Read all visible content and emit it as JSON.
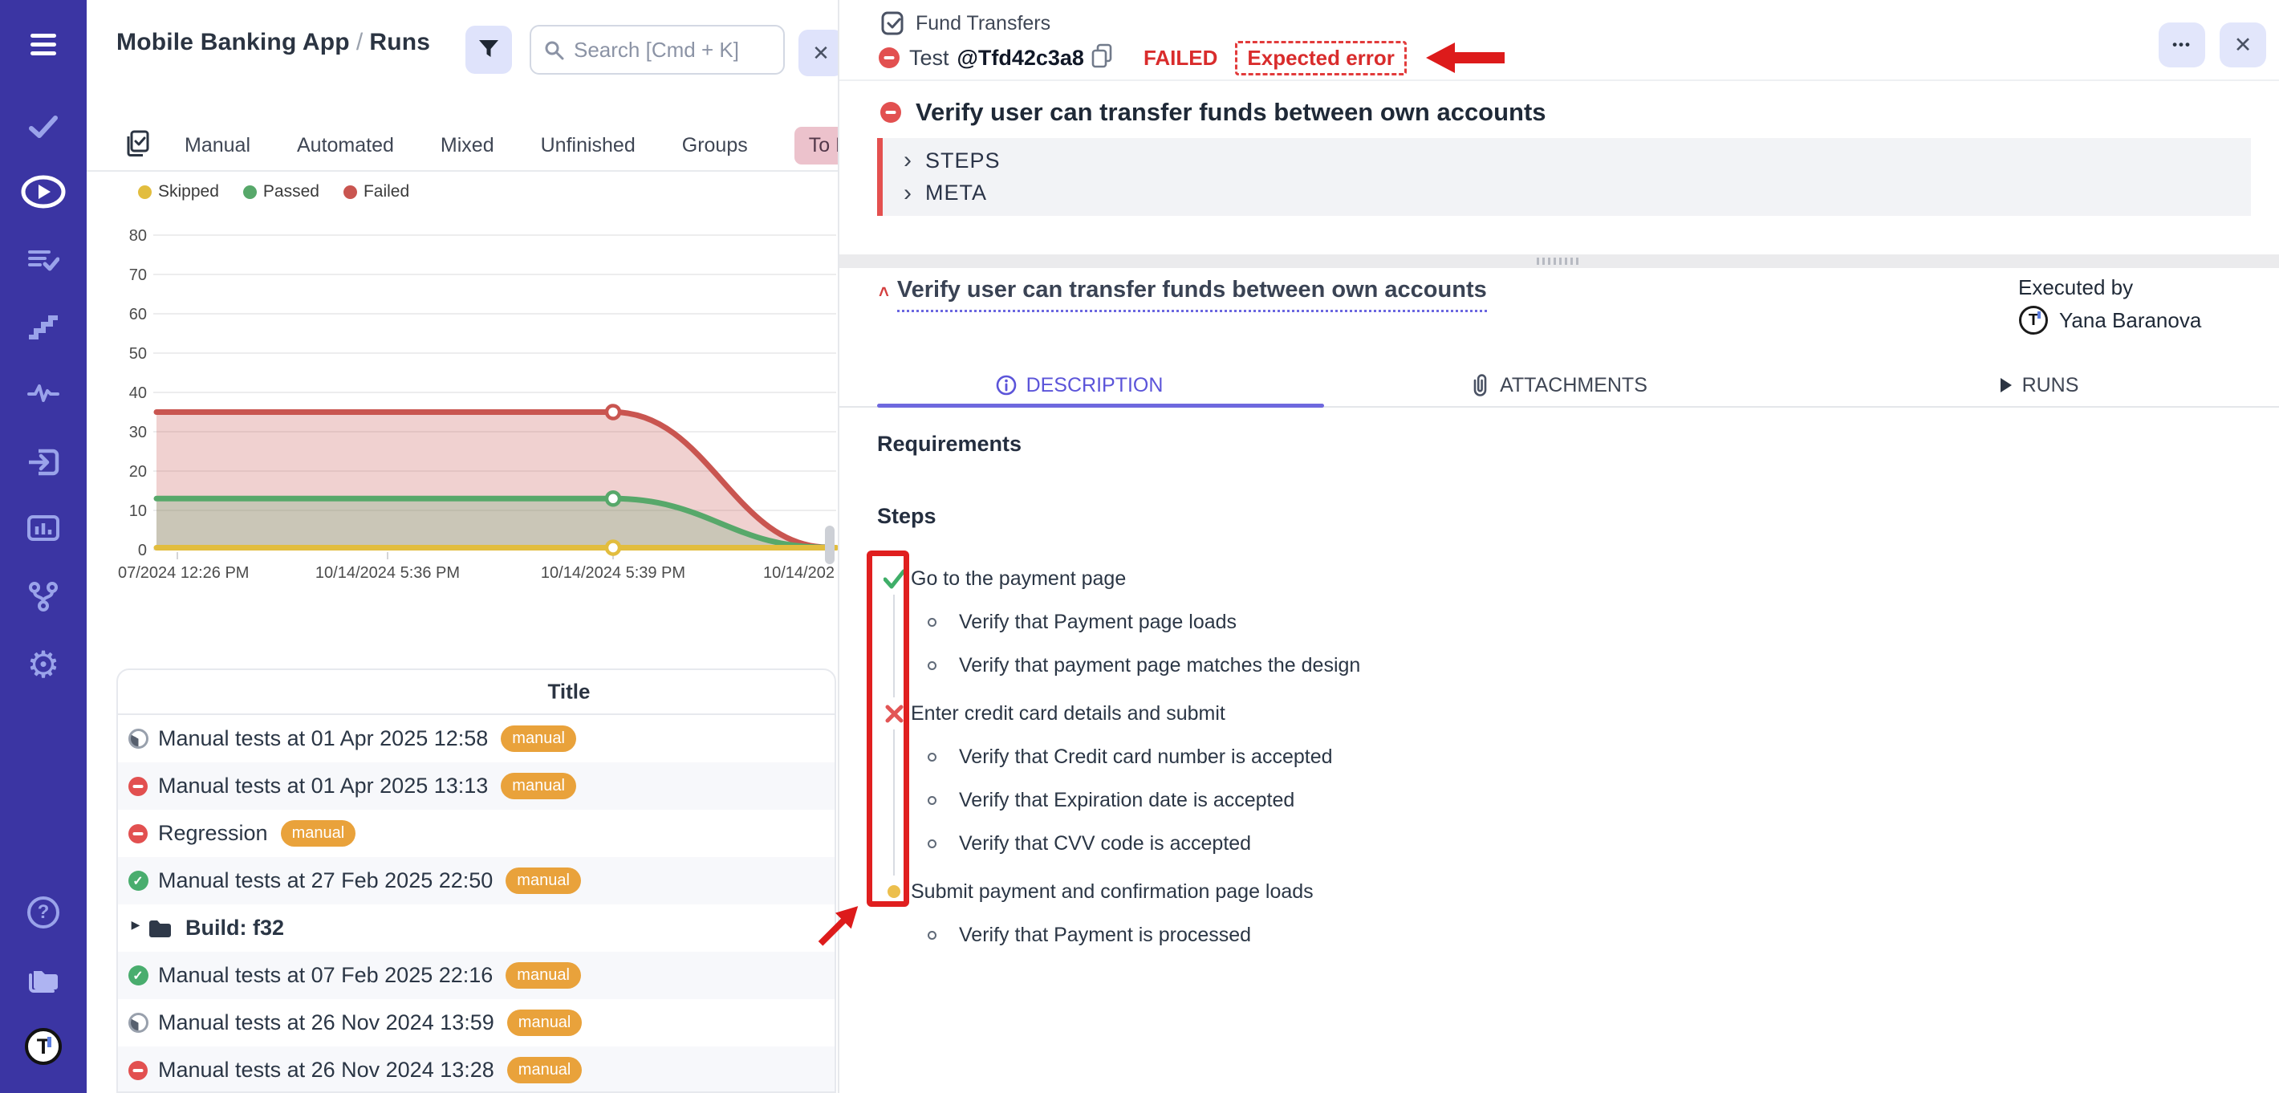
{
  "sidebar": {
    "icons": [
      "menu",
      "tests-check",
      "runs-play",
      "test-plans",
      "steps",
      "pulse",
      "import",
      "analytics",
      "branches",
      "settings",
      "help",
      "projects",
      "logo"
    ]
  },
  "left_panel": {
    "header": {
      "project": "Mobile Banking App",
      "separator": "/",
      "section": "Runs",
      "search_placeholder": "Search [Cmd + K]",
      "close_label": "✕"
    },
    "tabs": [
      "Manual",
      "Automated",
      "Mixed",
      "Unfinished",
      "Groups",
      "To Review"
    ],
    "table": {
      "header": "Title",
      "rows": [
        {
          "status": "progress",
          "title": "Manual tests at 01 Apr 2025 12:58",
          "badge": "manual"
        },
        {
          "status": "failed",
          "title": "Manual tests at 01 Apr 2025 13:13",
          "badge": "manual"
        },
        {
          "status": "failed",
          "title": "Regression",
          "badge": "manual"
        },
        {
          "status": "passed",
          "title": "Manual tests at 27 Feb 2025 22:50",
          "badge": "manual"
        },
        {
          "status": "folder",
          "title": "Build: f32"
        },
        {
          "status": "passed",
          "title": "Manual tests at 07 Feb 2025 22:16",
          "badge": "manual"
        },
        {
          "status": "progress",
          "title": "Manual tests at 26 Nov 2024 13:59",
          "badge": "manual"
        },
        {
          "status": "failed",
          "title": "Manual tests at 26 Nov 2024 13:28",
          "badge": "manual"
        }
      ]
    }
  },
  "chart_data": {
    "type": "area",
    "x_labels": [
      "07/2024 12:26 PM",
      "10/14/2024 5:36 PM",
      "10/14/2024 5:39 PM",
      "10/14/202"
    ],
    "ylim": [
      0,
      80
    ],
    "yticks": [
      0,
      10,
      20,
      30,
      40,
      50,
      60,
      70,
      80
    ],
    "grid": true,
    "legend_position": "top-left",
    "series": [
      {
        "name": "Skipped",
        "color": "#e2bd3e",
        "values": [
          0.5,
          0.5,
          0.5,
          0.5
        ]
      },
      {
        "name": "Passed",
        "color": "#57a86a",
        "values": [
          13,
          13,
          13,
          0
        ]
      },
      {
        "name": "Failed",
        "color": "#c95550",
        "values": [
          35,
          35,
          35,
          0
        ]
      }
    ]
  },
  "right_panel": {
    "breadcrumb": "Fund Transfers",
    "test_label": "Test",
    "test_id": "@Tfd42c3a8",
    "status": "FAILED",
    "status_note": "Expected error",
    "menu_label": "•••",
    "close_label": "✕",
    "title": "Verify user can transfer funds between own accounts",
    "collapsed_sections": [
      "STEPS",
      "META"
    ],
    "section_chevron": "›",
    "subtitle": "Verify user can transfer funds between own accounts",
    "collapse_caret": "˄",
    "executed_by_label": "Executed by",
    "executed_by_name": "Yana Baranova",
    "tabs": [
      {
        "label": "DESCRIPTION",
        "active": true
      },
      {
        "label": "ATTACHMENTS",
        "active": false
      },
      {
        "label": "RUNS",
        "active": false
      }
    ],
    "requirements_heading": "Requirements",
    "steps_heading": "Steps",
    "steps": [
      {
        "status": "passed",
        "text": "Go to the payment page",
        "substeps": [
          "Verify that Payment page loads",
          "Verify that payment page matches the design"
        ]
      },
      {
        "status": "failed",
        "text": "Enter credit card details and submit",
        "substeps": [
          "Verify that Credit card number is accepted",
          "Verify that Expiration date is accepted",
          "Verify that CVV code is accepted"
        ]
      },
      {
        "status": "skipped",
        "text": "Submit payment and confirmation page loads",
        "substeps": [
          "Verify that Payment is processed"
        ]
      }
    ]
  }
}
